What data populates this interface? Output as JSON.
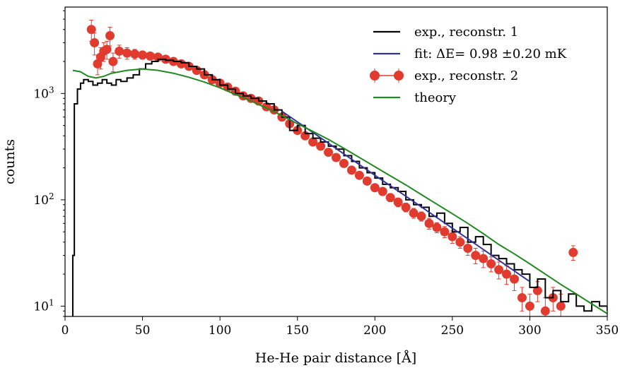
{
  "chart_data": {
    "type": "line",
    "title": "",
    "xlabel": "He-He pair distance [Å]",
    "ylabel": "counts",
    "xlim": [
      0,
      350
    ],
    "ylim": [
      8,
      6500
    ],
    "yscale": "log",
    "xticks": [
      0,
      50,
      100,
      150,
      200,
      250,
      300,
      350
    ],
    "yticks": [
      {
        "value": 10,
        "base": "10",
        "exp": "1"
      },
      {
        "value": 100,
        "base": "10",
        "exp": "2"
      },
      {
        "value": 1000,
        "base": "10",
        "exp": "3"
      }
    ],
    "legend_position": "top-right",
    "legend": [
      {
        "label": "exp., reconstr. 1",
        "kind": "line",
        "color": "#000000"
      },
      {
        "label": "fit: ΔE= 0.98 ±0.20 mK",
        "kind": "line",
        "color": "#33349a"
      },
      {
        "label": "exp., reconstr. 2",
        "kind": "errorbar",
        "color": "#e03b2e"
      },
      {
        "label": "theory",
        "kind": "line",
        "color": "#1f8a1f"
      }
    ],
    "series": [
      {
        "name": "exp., reconstr. 1",
        "style": "step",
        "color": "#000000",
        "x": [
          5,
          6,
          8,
          10,
          12,
          15,
          18,
          21,
          24,
          27,
          30,
          33,
          36,
          40,
          44,
          48,
          52,
          56,
          60,
          65,
          70,
          75,
          80,
          85,
          90,
          95,
          100,
          105,
          110,
          115,
          120,
          125,
          130,
          135,
          140,
          145,
          150,
          155,
          160,
          165,
          170,
          175,
          180,
          185,
          190,
          195,
          200,
          205,
          210,
          215,
          220,
          225,
          230,
          235,
          240,
          245,
          250,
          255,
          260,
          265,
          270,
          275,
          280,
          285,
          290,
          295,
          300,
          305,
          310,
          315,
          320,
          325,
          330,
          335,
          340,
          345,
          350
        ],
        "y": [
          30,
          800,
          1100,
          1250,
          1350,
          1300,
          1200,
          1250,
          1350,
          1250,
          1200,
          1350,
          1300,
          1400,
          1500,
          1700,
          1900,
          2000,
          2100,
          2050,
          2000,
          1950,
          1800,
          1700,
          1500,
          1350,
          1200,
          1100,
          1000,
          950,
          900,
          850,
          800,
          700,
          600,
          450,
          500,
          420,
          380,
          350,
          320,
          300,
          260,
          230,
          200,
          180,
          160,
          140,
          130,
          120,
          100,
          90,
          85,
          70,
          75,
          60,
          50,
          55,
          40,
          45,
          38,
          30,
          28,
          25,
          22,
          20,
          15,
          18,
          12,
          14,
          11,
          13,
          10,
          9,
          11,
          10,
          9
        ]
      },
      {
        "name": "fit: ΔE= 0.98 ±0.20 mK",
        "style": "line",
        "color": "#33349a",
        "x": [
          140,
          160,
          180,
          200,
          220,
          240,
          260,
          280,
          300
        ],
        "y": [
          680,
          430,
          270,
          170,
          108,
          68,
          43,
          27,
          17
        ]
      },
      {
        "name": "exp., reconstr. 2",
        "style": "errorbar",
        "color": "#e03b2e",
        "x": [
          17,
          19,
          21,
          23,
          25,
          27,
          29,
          31,
          35,
          40,
          45,
          50,
          55,
          60,
          65,
          70,
          75,
          80,
          85,
          90,
          95,
          100,
          105,
          110,
          115,
          120,
          125,
          130,
          135,
          140,
          145,
          150,
          155,
          160,
          165,
          170,
          175,
          180,
          185,
          190,
          195,
          200,
          205,
          210,
          215,
          220,
          225,
          230,
          235,
          240,
          245,
          250,
          255,
          260,
          265,
          270,
          275,
          280,
          285,
          290,
          295,
          300,
          305,
          310,
          315,
          320,
          328
        ],
        "y": [
          4000,
          3000,
          1900,
          2200,
          2500,
          2600,
          3500,
          2000,
          2500,
          2400,
          2350,
          2300,
          2250,
          2200,
          2100,
          2000,
          1900,
          1800,
          1650,
          1500,
          1350,
          1250,
          1150,
          1050,
          950,
          900,
          850,
          750,
          700,
          600,
          520,
          450,
          400,
          350,
          320,
          280,
          250,
          220,
          190,
          170,
          150,
          130,
          120,
          105,
          95,
          85,
          75,
          70,
          60,
          55,
          50,
          45,
          40,
          35,
          30,
          28,
          25,
          22,
          20,
          18,
          12,
          10,
          14,
          9,
          12,
          10,
          32
        ],
        "err": [
          900,
          700,
          400,
          500,
          500,
          500,
          700,
          400,
          350,
          300,
          250,
          200,
          180,
          160,
          150,
          140,
          130,
          120,
          110,
          100,
          90,
          80,
          70,
          60,
          55,
          50,
          45,
          40,
          38,
          32,
          28,
          25,
          22,
          20,
          18,
          16,
          15,
          14,
          13,
          12,
          11,
          10,
          10,
          9,
          9,
          8,
          8,
          7,
          7,
          6,
          6,
          6,
          5,
          5,
          5,
          5,
          4,
          4,
          4,
          4,
          3,
          3,
          3,
          3,
          3,
          3,
          5
        ]
      },
      {
        "name": "theory",
        "style": "line",
        "color": "#1f8a1f",
        "x": [
          5,
          10,
          15,
          20,
          25,
          30,
          40,
          50,
          60,
          70,
          80,
          90,
          100,
          110,
          120,
          130,
          140,
          150,
          160,
          170,
          180,
          190,
          200,
          210,
          220,
          230,
          240,
          250,
          260,
          270,
          280,
          290,
          300,
          310,
          320,
          330,
          340,
          350
        ],
        "y": [
          1650,
          1600,
          1450,
          1400,
          1450,
          1550,
          1650,
          1700,
          1650,
          1550,
          1420,
          1280,
          1130,
          980,
          850,
          730,
          620,
          520,
          440,
          370,
          305,
          250,
          205,
          168,
          138,
          112,
          91,
          74,
          60,
          48,
          38,
          31,
          25,
          20,
          16,
          13,
          10.5,
          8.5
        ]
      }
    ]
  }
}
